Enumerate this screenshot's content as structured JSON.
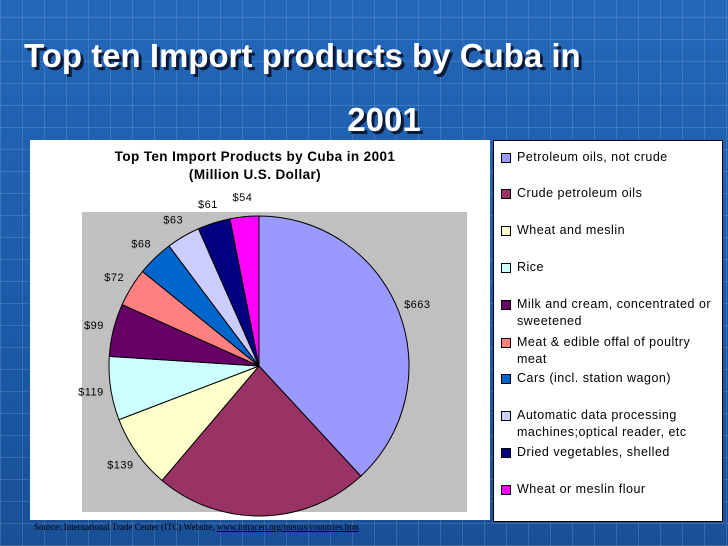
{
  "slide": {
    "title_line1": "Top ten Import products by Cuba in",
    "title_line2": "2001"
  },
  "source": {
    "text": "Source: International Trade Center (ITC) Website, ",
    "link": "www.intracen.org/menus/countries.htm"
  },
  "chart_data": {
    "type": "pie",
    "title": "Top Ten Import Products by Cuba in 2001",
    "subtitle": "(Million U.S. Dollar)",
    "legend_position": "right",
    "slices": [
      {
        "name": "Petroleum oils, not crude",
        "value": 663,
        "label": "$663",
        "color": "#9999ff"
      },
      {
        "name": "Crude petroleum oils",
        "value": 401,
        "label": "",
        "color": "#993366"
      },
      {
        "name": "Wheat and meslin",
        "value": 139,
        "label": "$139",
        "color": "#ffffcc"
      },
      {
        "name": "Rice",
        "value": 119,
        "label": "$119",
        "color": "#ccffff"
      },
      {
        "name": "Milk and cream, concentrated or sweetened",
        "value": 99,
        "label": "$99",
        "color": "#660066"
      },
      {
        "name": "Meat & edible offal of poultry meat",
        "value": 72,
        "label": "$72",
        "color": "#ff8080"
      },
      {
        "name": "Cars (incl. station wagon)",
        "value": 68,
        "label": "$68",
        "color": "#0066cc"
      },
      {
        "name": "Automatic data processing machines;optical reader, etc",
        "value": 63,
        "label": "$63",
        "color": "#ccccff"
      },
      {
        "name": "Dried vegetables, shelled",
        "value": 61,
        "label": "$61",
        "color": "#000080"
      },
      {
        "name": "Wheat or meslin flour",
        "value": 54,
        "label": "$54",
        "color": "#ff00ff"
      }
    ]
  }
}
